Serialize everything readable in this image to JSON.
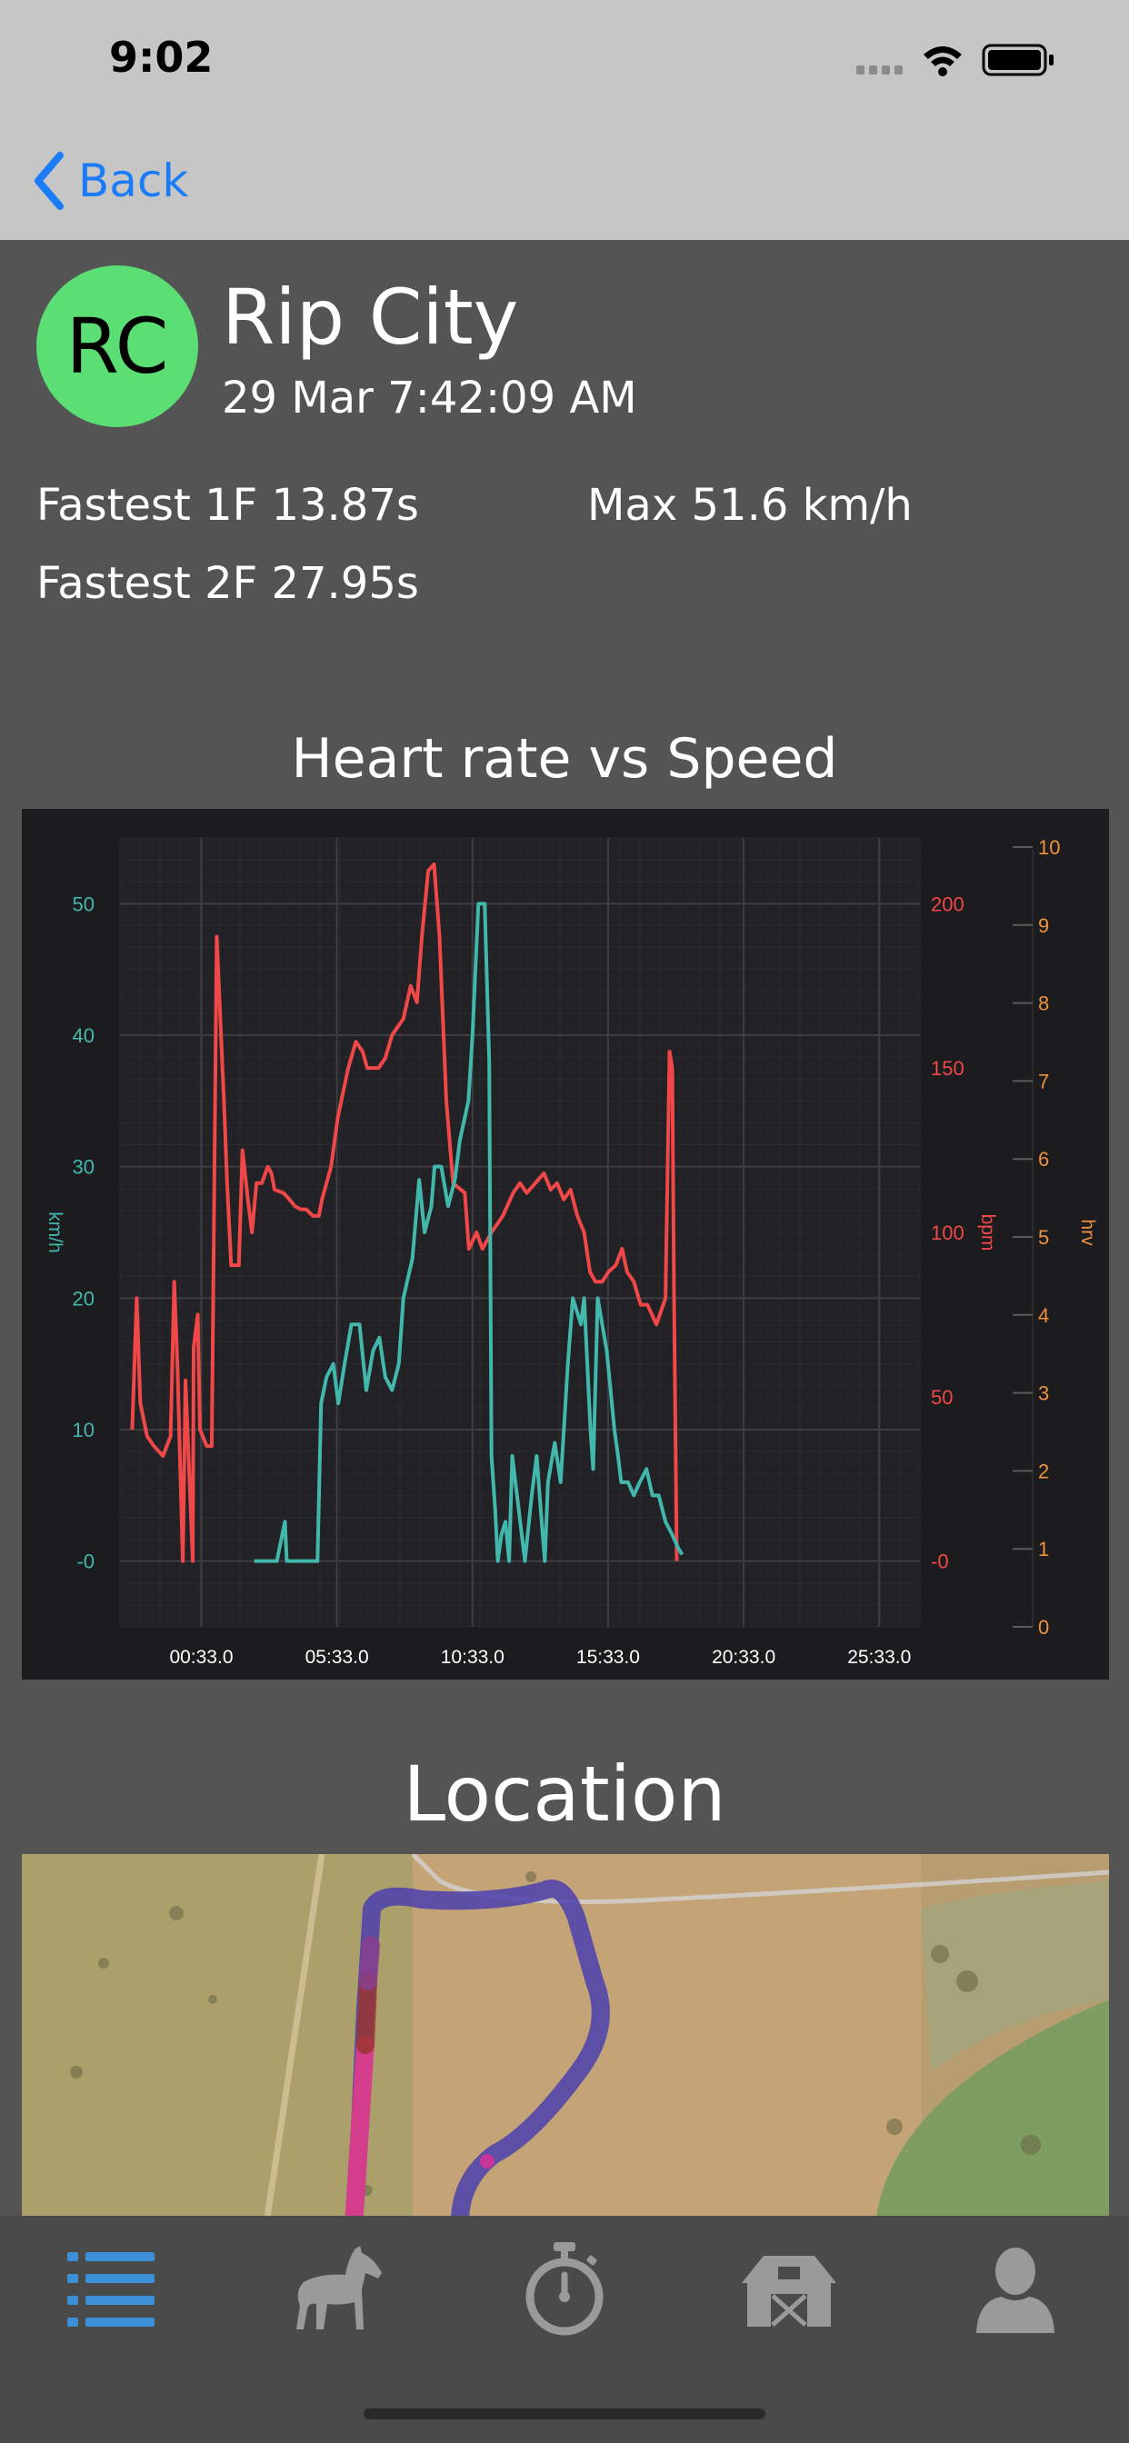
{
  "status_bar": {
    "time": "9:02"
  },
  "nav": {
    "back_label": "Back"
  },
  "horse": {
    "initials": "RC",
    "name": "Rip City",
    "session_time": "29 Mar 7:42:09 AM",
    "avatar_color": "#5bde74"
  },
  "stats": {
    "fastest_1f": "Fastest 1F 13.87s",
    "max_speed": "Max 51.6 km/h",
    "fastest_2f": "Fastest 2F 27.95s"
  },
  "chart_section_title": "Heart rate vs Speed",
  "location_title": "Location",
  "tabs": [
    {
      "icon": "list-icon",
      "active": true
    },
    {
      "icon": "horse-icon",
      "active": false
    },
    {
      "icon": "stopwatch-icon",
      "active": false
    },
    {
      "icon": "stable-icon",
      "active": false
    },
    {
      "icon": "person-icon",
      "active": false
    }
  ],
  "colors": {
    "accent": "#1a7cf7",
    "speed": "#42b8ad",
    "heart_rate": "#f04848",
    "hrv": "#ee9240",
    "active_tab": "#3b8fd6"
  },
  "chart_data": {
    "type": "line",
    "x_tick_labels": [
      "00:33.0",
      "05:33.0",
      "10:33.0",
      "15:33.0",
      "20:33.0",
      "25:33.0"
    ],
    "x_tick_seconds": [
      33,
      333,
      633,
      933,
      1233,
      1533
    ],
    "xlim_seconds": [
      -147,
      1623
    ],
    "y_left": {
      "label": "km/h",
      "ticks": [
        "-0",
        "10",
        "20",
        "30",
        "40",
        "50"
      ],
      "ylim": [
        -5,
        55
      ]
    },
    "y_right_bpm": {
      "label": "bpm",
      "ticks": [
        "-0",
        "50",
        "100",
        "150",
        "200"
      ],
      "ylim": [
        -20,
        220
      ]
    },
    "y_right_hrv": {
      "label": "hrv",
      "ticks": [
        "0",
        "1",
        "2",
        "3",
        "4",
        "5",
        "6",
        "7",
        "8",
        "9",
        "10"
      ],
      "ylim": [
        0,
        10
      ]
    },
    "grid": true,
    "series": [
      {
        "name": "km/h",
        "axis": "left",
        "points": [
          [
            150,
            0
          ],
          [
            200,
            0
          ],
          [
            218,
            3
          ],
          [
            222,
            0
          ],
          [
            290,
            0
          ],
          [
            298,
            12
          ],
          [
            310,
            14
          ],
          [
            325,
            15
          ],
          [
            336,
            12
          ],
          [
            350,
            15
          ],
          [
            365,
            18
          ],
          [
            383,
            18
          ],
          [
            398,
            13
          ],
          [
            413,
            16
          ],
          [
            427,
            17
          ],
          [
            440,
            14
          ],
          [
            455,
            13
          ],
          [
            470,
            15
          ],
          [
            480,
            20
          ],
          [
            500,
            23
          ],
          [
            515,
            29
          ],
          [
            527,
            25
          ],
          [
            542,
            27
          ],
          [
            549,
            30
          ],
          [
            564,
            30
          ],
          [
            579,
            27
          ],
          [
            594,
            29
          ],
          [
            605,
            32
          ],
          [
            624,
            35
          ],
          [
            633,
            40
          ],
          [
            646,
            50
          ],
          [
            660,
            50
          ],
          [
            670,
            38
          ],
          [
            675,
            8
          ],
          [
            683,
            4
          ],
          [
            689,
            0
          ],
          [
            697,
            2
          ],
          [
            706,
            3
          ],
          [
            714,
            0
          ],
          [
            721,
            8
          ],
          [
            735,
            4
          ],
          [
            749,
            0
          ],
          [
            764,
            5
          ],
          [
            775,
            8
          ],
          [
            786,
            3
          ],
          [
            793,
            0
          ],
          [
            800,
            6
          ],
          [
            815,
            9
          ],
          [
            828,
            6
          ],
          [
            844,
            15
          ],
          [
            855,
            20
          ],
          [
            873,
            18
          ],
          [
            880,
            20
          ],
          [
            894,
            10
          ],
          [
            900,
            7
          ],
          [
            910,
            20
          ],
          [
            930,
            16
          ],
          [
            947,
            10
          ],
          [
            955,
            8
          ],
          [
            962,
            6
          ],
          [
            977,
            6
          ],
          [
            990,
            5
          ],
          [
            1003,
            6
          ],
          [
            1018,
            7
          ],
          [
            1031,
            5
          ],
          [
            1045,
            5
          ],
          [
            1060,
            3
          ],
          [
            1075,
            2
          ],
          [
            1088,
            1
          ],
          [
            1097,
            0.5
          ]
        ]
      },
      {
        "name": "bpm",
        "axis": "right",
        "points": [
          [
            -120,
            40
          ],
          [
            -110,
            80
          ],
          [
            -102,
            48
          ],
          [
            -87,
            38
          ],
          [
            -72,
            35
          ],
          [
            -52,
            32
          ],
          [
            -35,
            38
          ],
          [
            -27,
            85
          ],
          [
            -20,
            60
          ],
          [
            -8,
            0
          ],
          [
            -2,
            55
          ],
          [
            14,
            0
          ],
          [
            16,
            65
          ],
          [
            25,
            75
          ],
          [
            30,
            40
          ],
          [
            45,
            35
          ],
          [
            56,
            35
          ],
          [
            60,
            90
          ],
          [
            67,
            190
          ],
          [
            75,
            165
          ],
          [
            83,
            140
          ],
          [
            90,
            115
          ],
          [
            99,
            90
          ],
          [
            116,
            90
          ],
          [
            124,
            125
          ],
          [
            136,
            110
          ],
          [
            145,
            100
          ],
          [
            155,
            115
          ],
          [
            167,
            115
          ],
          [
            180,
            120
          ],
          [
            188,
            118
          ],
          [
            195,
            113
          ],
          [
            215,
            112
          ],
          [
            228,
            110
          ],
          [
            240,
            108
          ],
          [
            253,
            107
          ],
          [
            265,
            107
          ],
          [
            280,
            105
          ],
          [
            293,
            105
          ],
          [
            300,
            110
          ],
          [
            310,
            115
          ],
          [
            320,
            120
          ],
          [
            335,
            135
          ],
          [
            358,
            150
          ],
          [
            375,
            158
          ],
          [
            390,
            155
          ],
          [
            400,
            150
          ],
          [
            412,
            150
          ],
          [
            425,
            150
          ],
          [
            440,
            153
          ],
          [
            455,
            160
          ],
          [
            480,
            165
          ],
          [
            496,
            175
          ],
          [
            510,
            170
          ],
          [
            521,
            190
          ],
          [
            535,
            210
          ],
          [
            548,
            212
          ],
          [
            560,
            190
          ],
          [
            575,
            140
          ],
          [
            590,
            115
          ],
          [
            616,
            112
          ],
          [
            625,
            95
          ],
          [
            642,
            100
          ],
          [
            655,
            95
          ],
          [
            675,
            100
          ],
          [
            700,
            105
          ],
          [
            723,
            112
          ],
          [
            738,
            115
          ],
          [
            753,
            112
          ],
          [
            772,
            115
          ],
          [
            791,
            118
          ],
          [
            806,
            113
          ],
          [
            820,
            115
          ],
          [
            835,
            110
          ],
          [
            850,
            113
          ],
          [
            865,
            105
          ],
          [
            880,
            100
          ],
          [
            893,
            88
          ],
          [
            905,
            85
          ],
          [
            920,
            85
          ],
          [
            934,
            88
          ],
          [
            950,
            90
          ],
          [
            964,
            95
          ],
          [
            975,
            88
          ],
          [
            990,
            85
          ],
          [
            1005,
            78
          ],
          [
            1020,
            78
          ],
          [
            1040,
            72
          ],
          [
            1060,
            80
          ],
          [
            1069,
            155
          ],
          [
            1075,
            150
          ],
          [
            1079,
            80
          ],
          [
            1085,
            0
          ]
        ]
      }
    ]
  }
}
